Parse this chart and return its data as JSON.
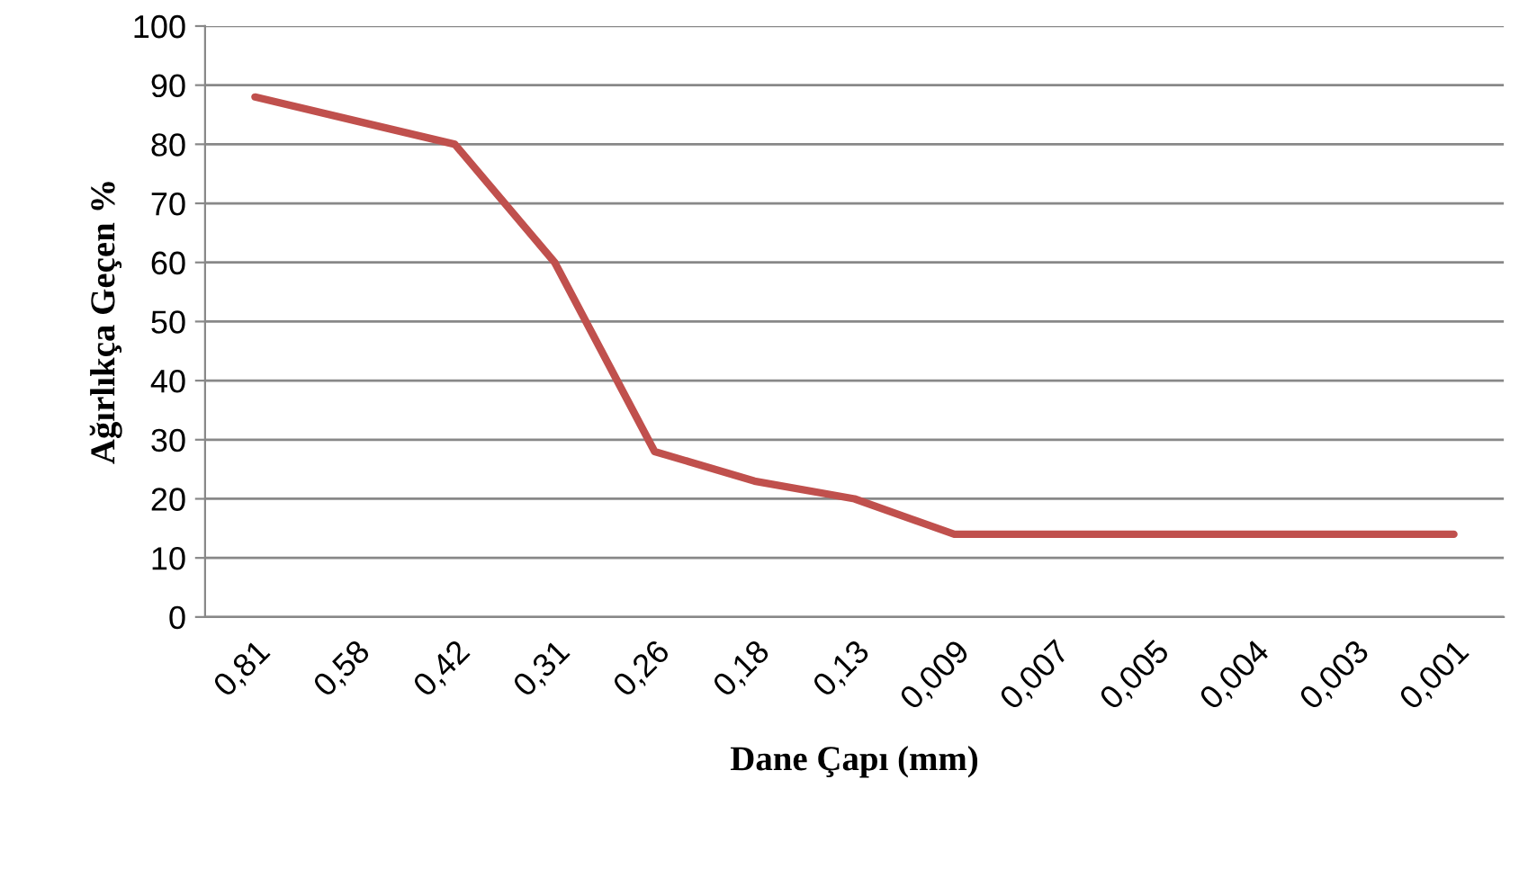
{
  "chart_data": {
    "type": "line",
    "xlabel": "Dane Çapı (mm)",
    "ylabel": "Ağırlıkça Geçen %",
    "categories": [
      "0,81",
      "0,58",
      "0,42",
      "0,31",
      "0,26",
      "0,18",
      "0,13",
      "0,009",
      "0,007",
      "0,005",
      "0,004",
      "0,003",
      "0,001"
    ],
    "series": [
      {
        "color": "#c0504d",
        "values": [
          88,
          84,
          80,
          60,
          28,
          23,
          20,
          14,
          14,
          14,
          14,
          14,
          14
        ]
      }
    ],
    "ylim": [
      0,
      100
    ],
    "yticks": [
      0,
      10,
      20,
      30,
      40,
      50,
      60,
      70,
      80,
      90,
      100
    ],
    "grid": "y",
    "marker": "none",
    "line_style": "solid"
  }
}
